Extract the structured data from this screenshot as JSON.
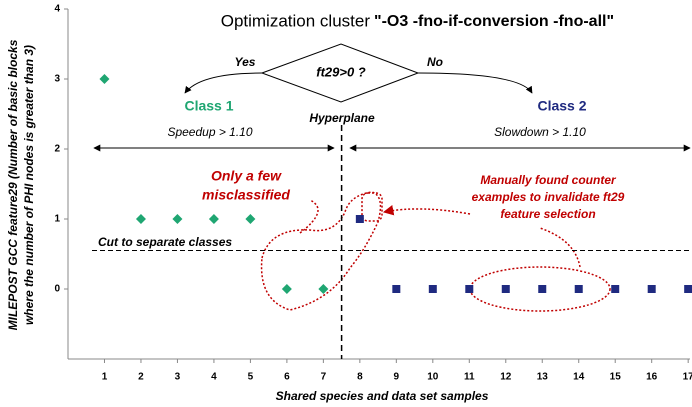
{
  "chart_data": {
    "type": "scatter",
    "title": "Optimization cluster",
    "title_emphasis": "\"-O3 -fno-if-conversion -fno-all\"",
    "xlabel": "Shared species and data set samples",
    "ylabel": [
      "MILEPOST GCC feature29 (Number of basic blocks",
      "where the number of PHI nodes is greater than 3)"
    ],
    "xlim": [
      0,
      17.05
    ],
    "ylim": [
      -1,
      4
    ],
    "xticks": [
      1,
      2,
      3,
      4,
      5,
      6,
      7,
      8,
      9,
      10,
      11,
      12,
      13,
      14,
      15,
      16,
      17
    ],
    "yticks": [
      0,
      1,
      2,
      3,
      4
    ],
    "series": [
      {
        "name": "Class 1",
        "color": "#1fa672",
        "marker": "diamond",
        "x": [
          1,
          2,
          3,
          4,
          5,
          6,
          7
        ],
        "values": [
          3,
          1,
          1,
          1,
          1,
          0,
          0
        ]
      },
      {
        "name": "Class 2",
        "color": "#1f2a80",
        "marker": "square",
        "x": [
          8,
          9,
          10,
          11,
          12,
          13,
          14,
          15,
          16,
          17
        ],
        "values": [
          1,
          0,
          0,
          0,
          0,
          0,
          0,
          0,
          0,
          0
        ]
      }
    ],
    "hyperplane_x": 7.5,
    "cut_y": 0.55,
    "decision": "ft29>0 ?",
    "yes": "Yes",
    "no": "No",
    "speedup": "Speedup > 1.10",
    "slowdown": "Slowdown > 1.10",
    "hyperplane": "Hyperplane",
    "cut": "Cut to separate classes",
    "misclassified": [
      "Only a few",
      "misclassified"
    ],
    "counter": [
      "Manually found counter",
      "examples to invalidate ft29",
      "feature selection"
    ]
  }
}
